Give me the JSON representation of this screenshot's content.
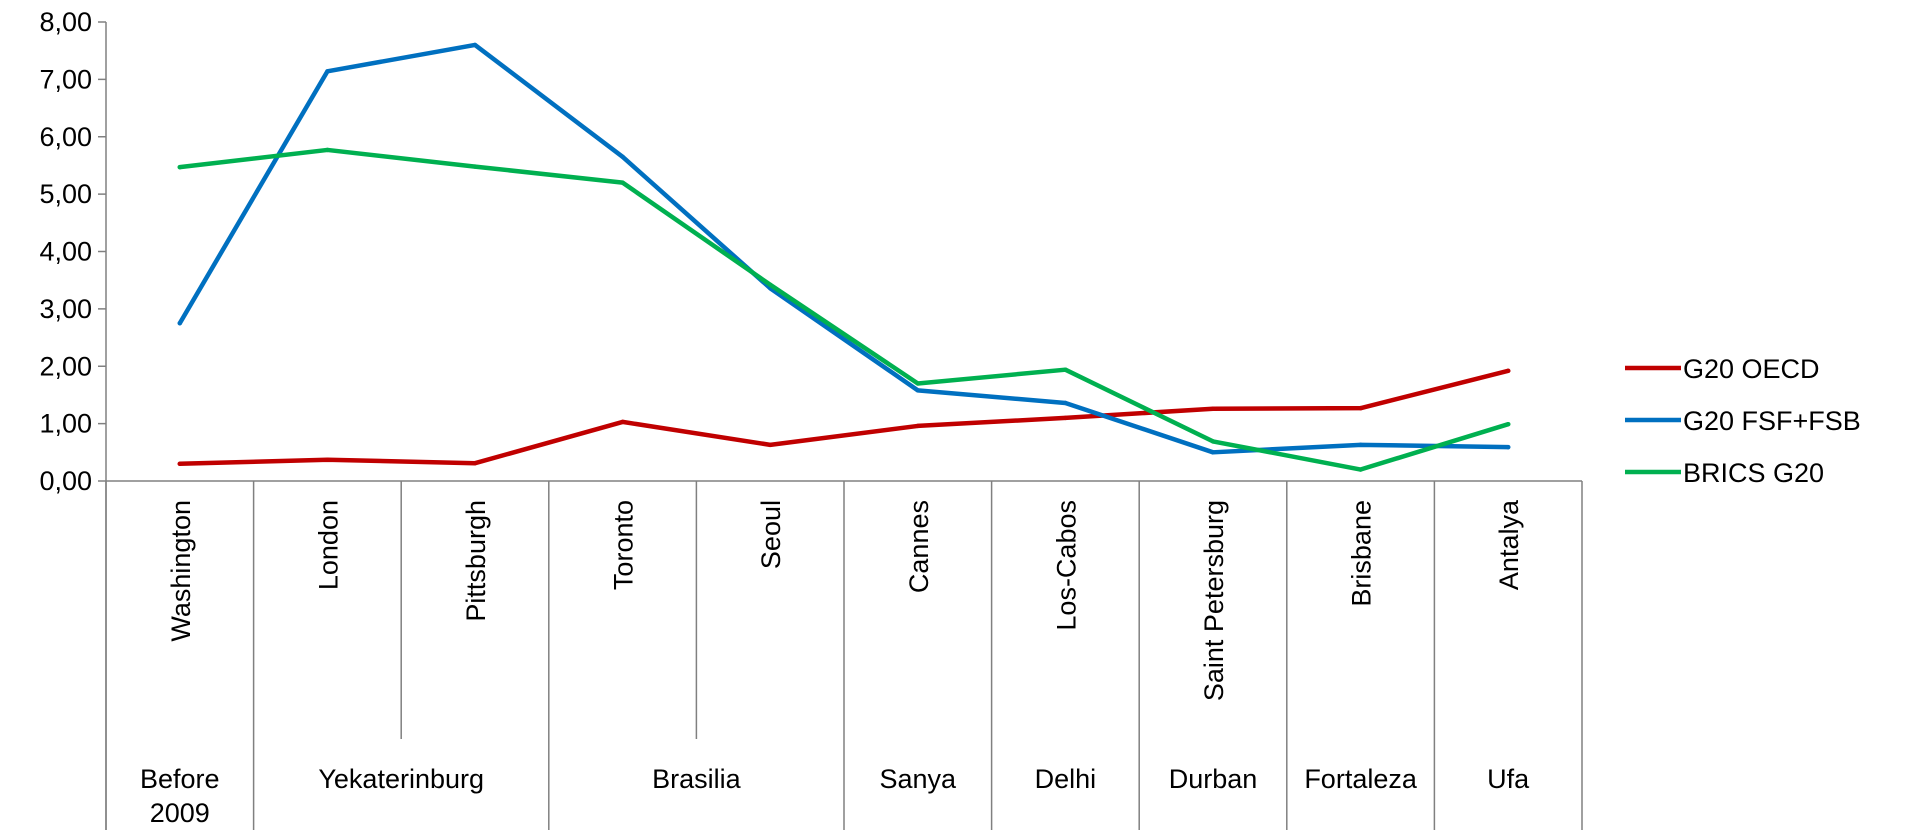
{
  "chart_data": {
    "type": "line",
    "title": "",
    "xlabel": "",
    "ylabel": "",
    "ylim": [
      0,
      8
    ],
    "y_ticks": [
      "0,00",
      "1,00",
      "2,00",
      "3,00",
      "4,00",
      "5,00",
      "6,00",
      "7,00",
      "8,00"
    ],
    "grid": false,
    "legend_position": "right",
    "categories": [
      "Washington",
      "London",
      "Pittsburgh",
      "Toronto",
      "Seoul",
      "Cannes",
      "Los-Cabos",
      "Saint Petersburg",
      "Brisbane",
      "Antalya"
    ],
    "category_groups": [
      {
        "label": "Before 2009",
        "lines": [
          "Before",
          "2009"
        ],
        "span": 1
      },
      {
        "label": "Yekaterinburg",
        "lines": [
          "Yekaterinburg"
        ],
        "span": 2
      },
      {
        "label": "Brasilia",
        "lines": [
          "Brasilia"
        ],
        "span": 2
      },
      {
        "label": "Sanya",
        "lines": [
          "Sanya"
        ],
        "span": 1
      },
      {
        "label": "Delhi",
        "lines": [
          "Delhi"
        ],
        "span": 1
      },
      {
        "label": "Durban",
        "lines": [
          "Durban"
        ],
        "span": 1
      },
      {
        "label": "Fortaleza",
        "lines": [
          "Fortaleza"
        ],
        "span": 1
      },
      {
        "label": "Ufa",
        "lines": [
          "Ufa"
        ],
        "span": 1
      }
    ],
    "series": [
      {
        "name": "G20 OECD",
        "color": "#C00000",
        "values": [
          0.3,
          0.37,
          0.31,
          1.03,
          0.63,
          0.96,
          1.1,
          1.26,
          1.27,
          1.92
        ]
      },
      {
        "name": "G20 FSF+FSB",
        "color": "#0070C0",
        "values": [
          2.75,
          7.14,
          7.6,
          5.65,
          3.36,
          1.58,
          1.36,
          0.5,
          0.63,
          0.59
        ]
      },
      {
        "name": "BRICS G20",
        "color": "#00B050",
        "values": [
          5.47,
          5.77,
          5.48,
          5.2,
          3.42,
          1.7,
          1.94,
          0.69,
          0.2,
          0.99
        ]
      }
    ]
  }
}
